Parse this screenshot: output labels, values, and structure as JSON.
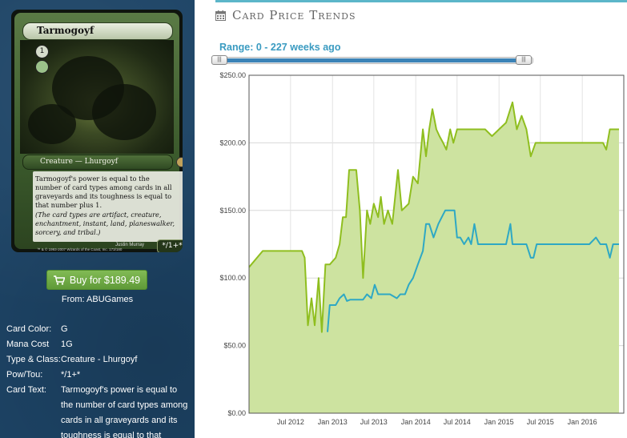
{
  "card": {
    "name": "Tarmogoyf",
    "type_line": "Creature — Lhurgoyf",
    "rules_text": "Tarmogoyf's power is equal to the number of card types among cards in all graveyards and its toughness is equal to that number plus 1.",
    "reminder_text": "(The card types are artifact, creature, enchantment, instant, land, planeswalker, sorcery, and tribal.)",
    "artist": "Justin Murray",
    "copyright": "™ & © 1993-2007 Wizards of the Coast, Inc. 173/180",
    "pt": "*/1+*",
    "mana_symbol": "1"
  },
  "buy": {
    "label": "Buy for $189.49",
    "from": "From: ABUGames"
  },
  "details": [
    {
      "label": "Card Color:",
      "value": "G"
    },
    {
      "label": "Mana Cost",
      "value": "1G"
    },
    {
      "label": "Type & Class:",
      "value": "Creature - Lhurgoyf"
    },
    {
      "label": "Pow/Tou:",
      "value": "*/1+*"
    },
    {
      "label": "Card Text:",
      "value": "Tarmogoyf's power is equal to the number of card types among cards in all graveyards and its toughness is equal to that"
    }
  ],
  "panel": {
    "title": "Card Price Trends",
    "range_label": "Range: 0 - 227 weeks ago",
    "range": {
      "min": 0,
      "max": 227,
      "start": 0,
      "end": 227
    }
  },
  "colors": {
    "sidebar_bg": "#1d4466",
    "accent": "#5cb6c9",
    "series_area": "#cde3a0",
    "series_area_line": "#8fbe1f",
    "series_line": "#2ea8c4",
    "buy_green": "#6ea946"
  },
  "chart_data": {
    "type": "area",
    "title": "",
    "xlabel": "",
    "ylabel": "",
    "ylim": [
      0,
      250
    ],
    "yticks": [
      "$0.00",
      "$50.00",
      "$100.00",
      "$150.00",
      "$200.00",
      "$250.00"
    ],
    "xlim": [
      "2012-01-01",
      "2016-07-01"
    ],
    "xticks": [
      {
        "date": "2012-07-01",
        "label": "Jul 2012"
      },
      {
        "date": "2013-01-01",
        "label": "Jan 2013"
      },
      {
        "date": "2013-07-01",
        "label": "Jul 2013"
      },
      {
        "date": "2014-01-01",
        "label": "Jan 2014"
      },
      {
        "date": "2014-07-01",
        "label": "Jul 2014"
      },
      {
        "date": "2015-01-01",
        "label": "Jan 2015"
      },
      {
        "date": "2015-07-01",
        "label": "Jul 2015"
      },
      {
        "date": "2016-01-01",
        "label": "Jan 2016"
      }
    ],
    "grid": true,
    "legend": "none",
    "series": [
      {
        "style": "area",
        "color": "#8fbe1f",
        "points": [
          [
            "2012-01-01",
            108
          ],
          [
            "2012-03-01",
            120
          ],
          [
            "2012-05-01",
            120
          ],
          [
            "2012-06-01",
            120
          ],
          [
            "2012-07-01",
            120
          ],
          [
            "2012-08-01",
            120
          ],
          [
            "2012-08-20",
            120
          ],
          [
            "2012-09-01",
            115
          ],
          [
            "2012-09-15",
            65
          ],
          [
            "2012-10-01",
            85
          ],
          [
            "2012-10-15",
            65
          ],
          [
            "2012-11-01",
            100
          ],
          [
            "2012-11-15",
            60
          ],
          [
            "2012-12-01",
            110
          ],
          [
            "2012-12-20",
            110
          ],
          [
            "2013-01-15",
            115
          ],
          [
            "2013-02-01",
            125
          ],
          [
            "2013-02-15",
            145
          ],
          [
            "2013-03-01",
            145
          ],
          [
            "2013-03-15",
            180
          ],
          [
            "2013-04-15",
            180
          ],
          [
            "2013-05-01",
            150
          ],
          [
            "2013-05-15",
            100
          ],
          [
            "2013-06-01",
            150
          ],
          [
            "2013-06-15",
            140
          ],
          [
            "2013-07-01",
            155
          ],
          [
            "2013-07-20",
            145
          ],
          [
            "2013-08-01",
            160
          ],
          [
            "2013-08-15",
            140
          ],
          [
            "2013-09-01",
            150
          ],
          [
            "2013-09-20",
            140
          ],
          [
            "2013-10-15",
            180
          ],
          [
            "2013-11-01",
            150
          ],
          [
            "2013-12-01",
            155
          ],
          [
            "2013-12-20",
            175
          ],
          [
            "2014-01-10",
            170
          ],
          [
            "2014-02-01",
            210
          ],
          [
            "2014-02-15",
            190
          ],
          [
            "2014-03-01",
            210
          ],
          [
            "2014-03-15",
            225
          ],
          [
            "2014-04-01",
            210
          ],
          [
            "2014-04-15",
            205
          ],
          [
            "2014-05-01",
            200
          ],
          [
            "2014-05-15",
            195
          ],
          [
            "2014-06-01",
            210
          ],
          [
            "2014-06-15",
            200
          ],
          [
            "2014-07-01",
            210
          ],
          [
            "2014-08-01",
            210
          ],
          [
            "2014-09-01",
            210
          ],
          [
            "2014-10-01",
            210
          ],
          [
            "2014-11-01",
            210
          ],
          [
            "2014-12-01",
            205
          ],
          [
            "2015-01-01",
            210
          ],
          [
            "2015-02-01",
            215
          ],
          [
            "2015-03-01",
            230
          ],
          [
            "2015-03-20",
            210
          ],
          [
            "2015-04-10",
            220
          ],
          [
            "2015-05-01",
            210
          ],
          [
            "2015-05-20",
            190
          ],
          [
            "2015-06-10",
            200
          ],
          [
            "2015-07-01",
            200
          ],
          [
            "2015-08-01",
            200
          ],
          [
            "2015-09-01",
            200
          ],
          [
            "2015-10-01",
            200
          ],
          [
            "2015-11-01",
            200
          ],
          [
            "2015-12-01",
            200
          ],
          [
            "2016-01-01",
            200
          ],
          [
            "2016-02-01",
            200
          ],
          [
            "2016-03-01",
            200
          ],
          [
            "2016-04-01",
            200
          ],
          [
            "2016-04-15",
            195
          ],
          [
            "2016-05-01",
            210
          ],
          [
            "2016-06-01",
            210
          ],
          [
            "2016-06-10",
            210
          ]
        ]
      },
      {
        "style": "line",
        "color": "#2ea8c4",
        "points": [
          [
            "2012-12-10",
            60
          ],
          [
            "2012-12-20",
            80
          ],
          [
            "2013-01-15",
            80
          ],
          [
            "2013-02-01",
            85
          ],
          [
            "2013-02-20",
            88
          ],
          [
            "2013-03-05",
            83
          ],
          [
            "2013-03-20",
            84
          ],
          [
            "2013-04-15",
            84
          ],
          [
            "2013-05-15",
            84
          ],
          [
            "2013-06-01",
            88
          ],
          [
            "2013-06-20",
            85
          ],
          [
            "2013-07-05",
            95
          ],
          [
            "2013-07-20",
            88
          ],
          [
            "2013-08-10",
            88
          ],
          [
            "2013-09-10",
            88
          ],
          [
            "2013-10-10",
            85
          ],
          [
            "2013-10-25",
            88
          ],
          [
            "2013-11-15",
            88
          ],
          [
            "2013-12-01",
            95
          ],
          [
            "2013-12-20",
            100
          ],
          [
            "2014-01-10",
            110
          ],
          [
            "2014-02-01",
            120
          ],
          [
            "2014-02-15",
            140
          ],
          [
            "2014-03-01",
            140
          ],
          [
            "2014-03-20",
            130
          ],
          [
            "2014-04-10",
            140
          ],
          [
            "2014-04-25",
            145
          ],
          [
            "2014-05-10",
            150
          ],
          [
            "2014-06-01",
            150
          ],
          [
            "2014-06-20",
            150
          ],
          [
            "2014-07-01",
            130
          ],
          [
            "2014-07-15",
            130
          ],
          [
            "2014-08-01",
            125
          ],
          [
            "2014-08-20",
            130
          ],
          [
            "2014-09-01",
            125
          ],
          [
            "2014-09-15",
            140
          ],
          [
            "2014-10-01",
            125
          ],
          [
            "2014-11-01",
            125
          ],
          [
            "2014-12-01",
            125
          ],
          [
            "2015-01-01",
            125
          ],
          [
            "2015-02-01",
            125
          ],
          [
            "2015-02-20",
            140
          ],
          [
            "2015-03-01",
            125
          ],
          [
            "2015-04-01",
            125
          ],
          [
            "2015-05-01",
            125
          ],
          [
            "2015-05-20",
            115
          ],
          [
            "2015-06-01",
            115
          ],
          [
            "2015-06-15",
            125
          ],
          [
            "2015-08-01",
            125
          ],
          [
            "2015-09-01",
            125
          ],
          [
            "2015-10-01",
            125
          ],
          [
            "2015-11-01",
            125
          ],
          [
            "2015-12-01",
            125
          ],
          [
            "2016-01-01",
            125
          ],
          [
            "2016-02-01",
            125
          ],
          [
            "2016-03-01",
            130
          ],
          [
            "2016-03-20",
            125
          ],
          [
            "2016-04-15",
            125
          ],
          [
            "2016-05-01",
            115
          ],
          [
            "2016-05-15",
            125
          ],
          [
            "2016-06-10",
            125
          ]
        ]
      }
    ]
  }
}
